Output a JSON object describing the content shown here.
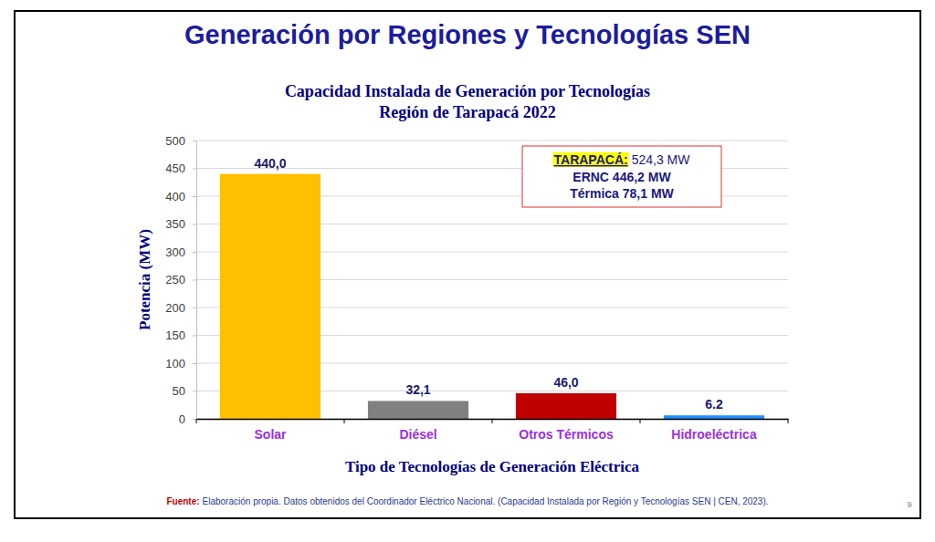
{
  "header": {
    "title": "Generación por Regiones y Tecnologías SEN"
  },
  "chart_data": {
    "type": "bar",
    "title": "Capacidad Instalada de Generación por Tecnologías",
    "subtitle": "Región de Tarapacá 2022",
    "x_label": "Tipo de Tecnologías de Generación Eléctrica",
    "y_label": "Potencia (MW)",
    "categories": [
      "Solar",
      "Diésel",
      "Otros Térmicos",
      "Hidroeléctrica"
    ],
    "values": [
      440.0,
      32.1,
      46.0,
      6.2
    ],
    "value_labels": [
      "440,0",
      "32,1",
      "46,0",
      "6.2"
    ],
    "colors": [
      "#ffc000",
      "#808080",
      "#c00000",
      "#1e90ff"
    ],
    "ylim": [
      0,
      500
    ],
    "yticks": [
      0,
      50,
      100,
      150,
      200,
      250,
      300,
      350,
      400,
      450,
      500
    ],
    "grid": true,
    "data_labels": true,
    "annotations": {
      "highlight": "TARAPACÁ:",
      "total": "524,3 MW",
      "lines": [
        "ERNC 446,2 MW",
        "Térmica 78,1 MW"
      ]
    }
  },
  "footer": {
    "source_label": "Fuente:",
    "source_text": "Elaboración propia. Datos obtenidos del Coordinador Eléctrico Nacional. (Capacidad Instalada por Región y Tecnologías SEN | CEN, 2023).",
    "page_number": "9"
  }
}
